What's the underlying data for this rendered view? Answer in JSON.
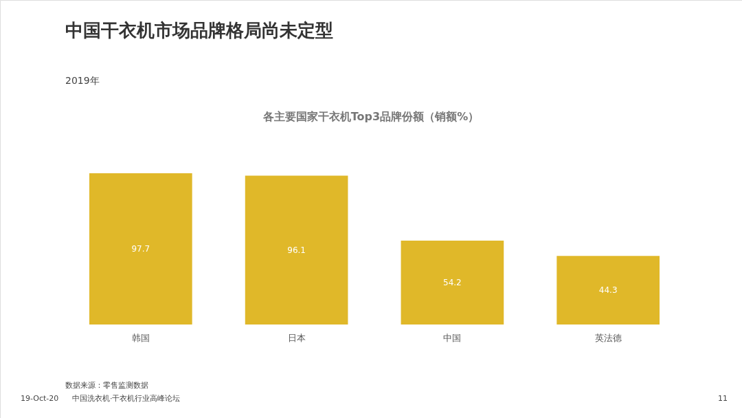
{
  "chart_data": {
    "type": "bar",
    "title": "中国干衣机市场品牌格局尚未定型",
    "subtitle": "2019年",
    "categories": [
      "韩国",
      "日本",
      "中国",
      "英法德"
    ],
    "values": [
      97.7,
      96.1,
      54.2,
      44.3
    ],
    "color": "#e0b829",
    "data_labels": true,
    "annotations": [
      "各主要国家干衣机Top3品牌份额（销额%）",
      "数据来源：零售监测数据",
      "19-Oct-20",
      "中国洗衣机·干衣机行业高峰论坛",
      "11"
    ]
  }
}
